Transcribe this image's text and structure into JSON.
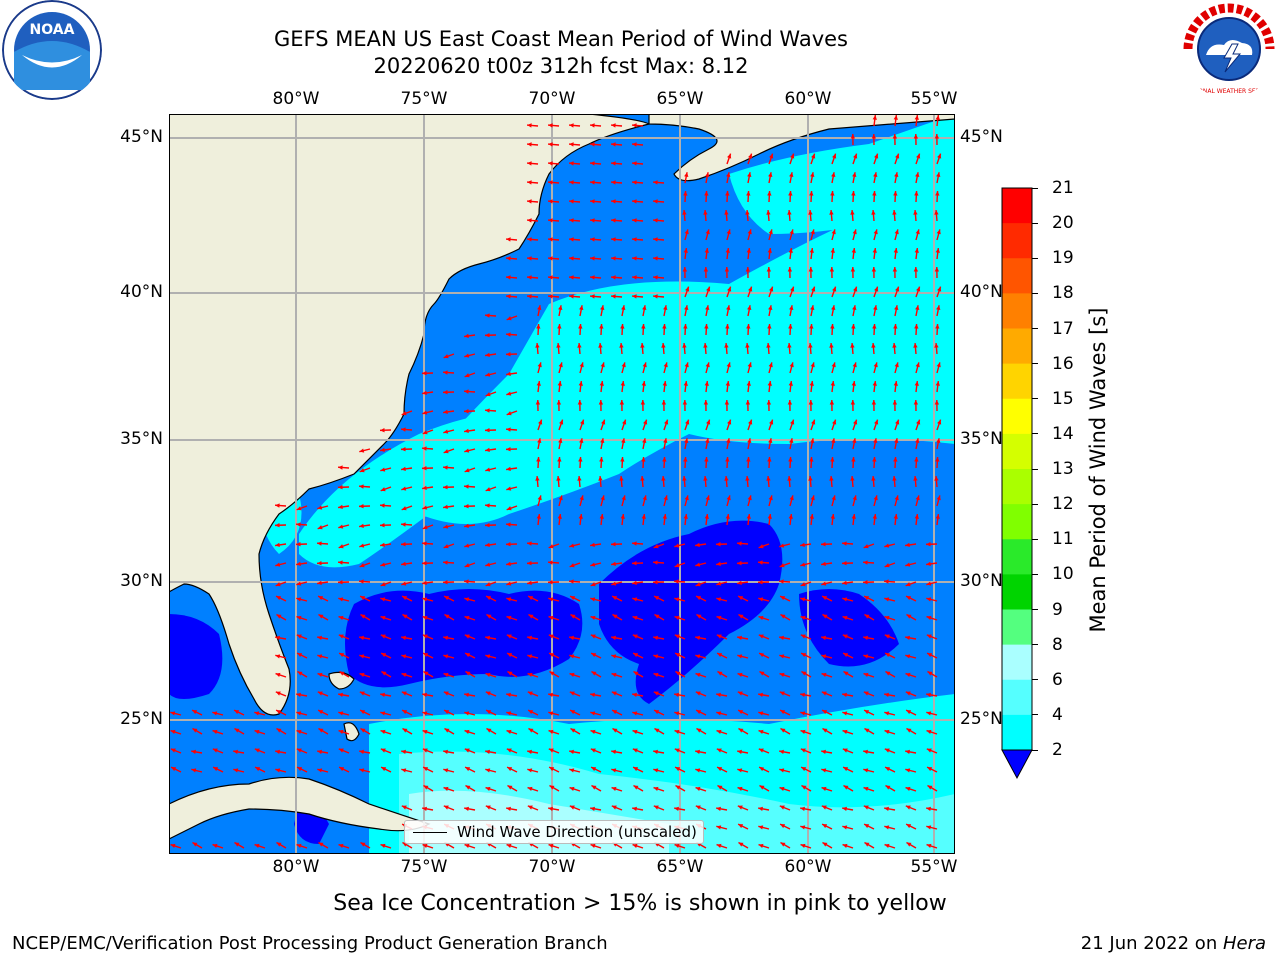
{
  "title": {
    "line1": "GEFS MEAN US East Coast Mean Period of Wind Waves",
    "line2": "20220620 t00z 312h fcst   Max: 8.12"
  },
  "logos": {
    "noaa": {
      "text": "NOAA",
      "icon": "noaa-logo"
    },
    "nws": {
      "text": "NATIONAL WEATHER SERVICE",
      "icon": "nws-logo"
    }
  },
  "map": {
    "lon_labels": [
      "80°W",
      "75°W",
      "70°W",
      "65°W",
      "60°W",
      "55°W"
    ],
    "lat_labels": [
      "45°N",
      "40°N",
      "35°N",
      "30°N",
      "25°N"
    ],
    "legend": "Wind Wave Direction (unscaled)",
    "colors": {
      "land": "#efefdc",
      "grid": "#b0b0b0",
      "arrow": "#ff0000",
      "coast": "#000000"
    }
  },
  "colorbar": {
    "label": "Mean Period of Wind Waves [s]",
    "ticks": [
      "21",
      "20",
      "19",
      "18",
      "17",
      "16",
      "15",
      "14",
      "13",
      "12",
      "11",
      "10",
      "9",
      "8",
      "6",
      "4",
      "2"
    ],
    "colors": [
      "#ff0000",
      "#ff2a00",
      "#ff5500",
      "#ff8000",
      "#ffaa00",
      "#ffd400",
      "#ffff00",
      "#d4ff00",
      "#aaff00",
      "#80ff00",
      "#2aea2a",
      "#00d400",
      "#54ff7f",
      "#aaffff",
      "#55ffff",
      "#00ffff",
      "#0080ff"
    ],
    "under_color": "#0000ff",
    "levels_high_to_low": [
      21,
      20,
      19,
      18,
      17,
      16,
      15,
      14,
      13,
      12,
      11,
      10,
      9,
      8,
      6,
      4,
      2
    ]
  },
  "footer": {
    "note": "Sea Ice Concentration > 15% is shown in pink to yellow",
    "left": "NCEP/EMC/Verification Post Processing Product Generation Branch",
    "right_date": "21 Jun 2022 on ",
    "right_host": "Hera"
  }
}
